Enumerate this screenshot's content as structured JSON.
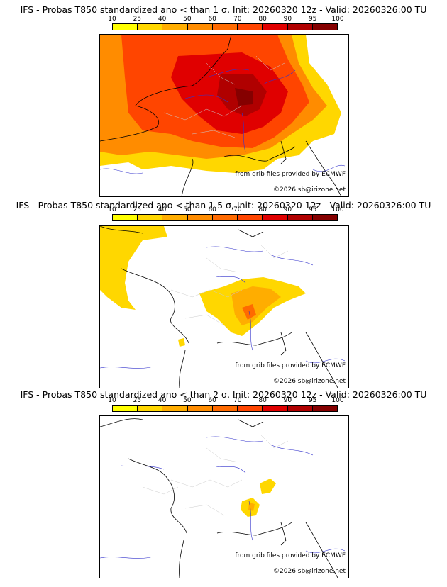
{
  "legend": {
    "ticks": [
      "10",
      "25",
      "40",
      "50",
      "60",
      "70",
      "80",
      "90",
      "95",
      "100"
    ],
    "colors": [
      "#ffff00",
      "#ffd700",
      "#ffad00",
      "#ff8c00",
      "#ff6a00",
      "#ff4500",
      "#e00000",
      "#b00000",
      "#850000",
      "#4d0000"
    ]
  },
  "panels": [
    {
      "title": "IFS - Probas T850  standardized ano < than 1 σ, Init: 20260320 12z - Valid: 20260326:00 TU",
      "credit_source": "from grib files provided by ECMWF",
      "credit_copyright": "©2026 sb@irizone.net"
    },
    {
      "title": "IFS - Probas T850  standardized ano < than 1.5 σ, Init: 20260320 12z - Valid: 20260326:00 TU",
      "credit_source": "from grib files provided by ECMWF",
      "credit_copyright": "©2026 sb@irizone.net"
    },
    {
      "title": "IFS - Probas T850  standardized ano < than 2 σ, Init: 20260320 12z - Valid: 20260326:00 TU",
      "credit_source": "from grib files provided by ECMWF",
      "credit_copyright": "©2026 sb@irizone.net"
    }
  ]
}
